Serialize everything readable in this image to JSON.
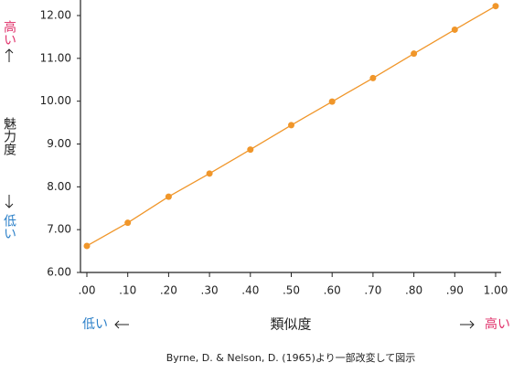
{
  "chart_data": {
    "type": "line",
    "x": [
      0,
      0.1,
      0.2,
      0.3,
      0.4,
      0.5,
      0.6,
      0.7,
      0.8,
      0.9,
      1.0
    ],
    "series": [
      {
        "color": "#f0962a",
        "values": [
          6.62,
          7.16,
          7.77,
          8.31,
          8.87,
          9.44,
          9.99,
          10.54,
          11.11,
          11.67,
          12.22
        ]
      }
    ],
    "xlim": [
      0,
      1
    ],
    "ylim": [
      6,
      12
    ],
    "xticks": [
      {
        "value": 0,
        "label": ".00"
      },
      {
        "value": 0.1,
        "label": ".10"
      },
      {
        "value": 0.2,
        "label": ".20"
      },
      {
        "value": 0.3,
        "label": ".30"
      },
      {
        "value": 0.4,
        "label": ".40"
      },
      {
        "value": 0.5,
        "label": ".50"
      },
      {
        "value": 0.6,
        "label": ".60"
      },
      {
        "value": 0.7,
        "label": ".70"
      },
      {
        "value": 0.8,
        "label": ".80"
      },
      {
        "value": 0.9,
        "label": ".90"
      },
      {
        "value": 1.0,
        "label": "1.00"
      }
    ],
    "yticks": [
      {
        "value": 6,
        "label": "6.00"
      },
      {
        "value": 7,
        "label": "7.00"
      },
      {
        "value": 8,
        "label": "8.00"
      },
      {
        "value": 9,
        "label": "9.00"
      },
      {
        "value": 10,
        "label": "10.00"
      },
      {
        "value": 11,
        "label": "11.00"
      },
      {
        "value": 12,
        "label": "12.00"
      }
    ],
    "y_label": "魅力度",
    "y_high": "高い",
    "y_low": "低い",
    "x_label": "類似度",
    "x_low": "低い",
    "x_high": "高い",
    "caption": "Byrne, D. & Nelson, D. (1965)より一部改変して図示"
  }
}
